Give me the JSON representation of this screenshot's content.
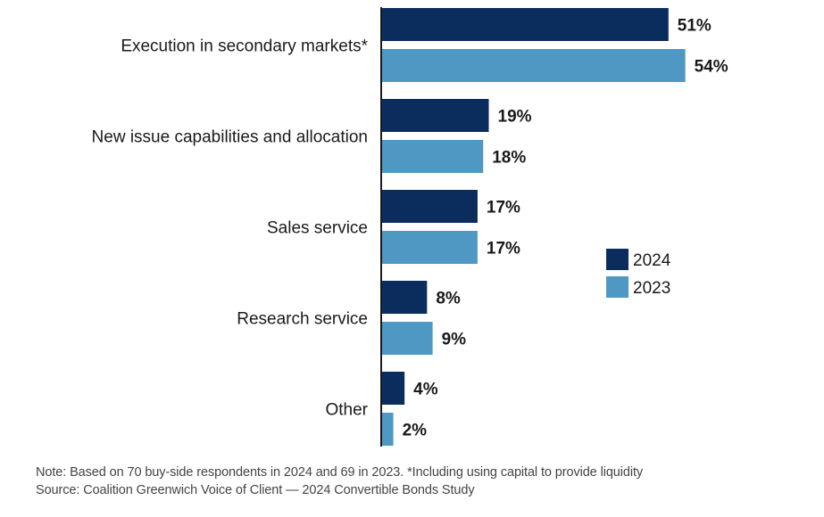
{
  "chart_data": {
    "type": "bar",
    "orientation": "horizontal",
    "title": "",
    "xlabel": "",
    "ylabel": "",
    "categories": [
      "Execution in secondary markets*",
      "New issue capabilities and allocation",
      "Sales service",
      "Research service",
      "Other"
    ],
    "series": [
      {
        "name": "2024",
        "color": "#0a2d5e",
        "values": [
          51,
          19,
          17,
          8,
          4
        ],
        "labels": [
          "51%",
          "19%",
          "17%",
          "8%",
          "4%"
        ]
      },
      {
        "name": "2023",
        "color": "#4f98c3",
        "values": [
          54,
          18,
          17,
          9,
          2
        ],
        "labels": [
          "54%",
          "18%",
          "17%",
          "9%",
          "2%"
        ]
      }
    ],
    "xlim": [
      0,
      60
    ],
    "grid": false,
    "legend_position": "right",
    "value_unit": "%"
  },
  "footer": {
    "note": "Note: Based on 70 buy-side respondents in 2024 and 69 in 2023. *Including using capital to provide liquidity",
    "source": "Source: Coalition Greenwich Voice of Client — 2024 Convertible Bonds Study"
  }
}
